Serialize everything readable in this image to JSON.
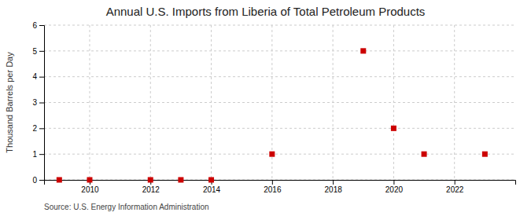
{
  "chart_data": {
    "type": "scatter",
    "title": "Annual U.S. Imports from Liberia of Total Petroleum Products",
    "y_label": "Thousand Barrels per Day",
    "source": "Source: U.S. Energy Information Administration",
    "x": [
      2009,
      2010,
      2012,
      2013,
      2014,
      2016,
      2019,
      2020,
      2021,
      2023
    ],
    "values": [
      0,
      0,
      0,
      0,
      0,
      1,
      5,
      2,
      1,
      1
    ],
    "color": "#cc0000",
    "marker": "square",
    "xlim": [
      2008.5,
      2024
    ],
    "ylim": [
      0,
      6
    ],
    "xticks": [
      2010,
      2012,
      2014,
      2016,
      2018,
      2020,
      2022
    ],
    "yticks": [
      0,
      1,
      2,
      3,
      4,
      5,
      6
    ],
    "grid": true
  }
}
